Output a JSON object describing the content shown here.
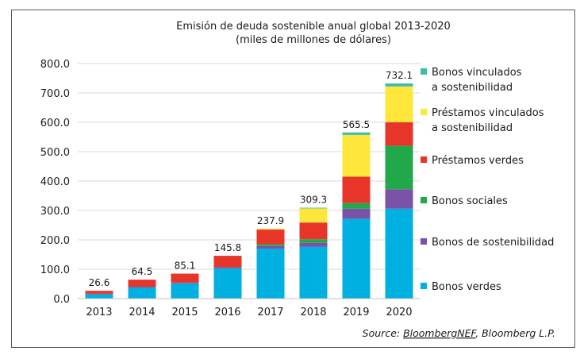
{
  "chart_data": {
    "type": "bar",
    "stacked": true,
    "title": "Emisión de deuda sostenible anual global 2013-2020",
    "subtitle": "(miles de millones de dólares)",
    "categories": [
      "2013",
      "2014",
      "2015",
      "2016",
      "2017",
      "2018",
      "2019",
      "2020"
    ],
    "y_ticks": [
      "0.0",
      "100.0",
      "200.0",
      "300.0",
      "400.0",
      "500.0",
      "600.0",
      "700.0",
      "800.0"
    ],
    "ylim": [
      0,
      800
    ],
    "grid": true,
    "legend_position": "right",
    "totals": [
      "26.6",
      "64.5",
      "85.1",
      "145.8",
      "237.9",
      "309.3",
      "565.5",
      "732.1"
    ],
    "series": [
      {
        "name": "Bonos verdes",
        "color": "#00b0e0",
        "values": [
          15,
          38,
          52,
          103,
          170,
          176,
          272,
          306
        ]
      },
      {
        "name": "Bonos de sostenibilidad",
        "color": "#7a52a8",
        "values": [
          1.6,
          2.5,
          3,
          4,
          9,
          14,
          34,
          66
        ]
      },
      {
        "name": "Bonos sociales",
        "color": "#20a84a",
        "values": [
          0,
          0,
          0,
          0,
          6,
          12,
          19,
          148
        ]
      },
      {
        "name": "Préstamos verdes",
        "color": "#e8352a",
        "values": [
          10,
          24,
          30,
          38.8,
          50,
          57,
          90,
          80
        ]
      },
      {
        "name": "Préstamos vinculados\na sostenibilidad",
        "color": "#ffe63a",
        "values": [
          0,
          0,
          0,
          0,
          2.9,
          48,
          142,
          122
        ]
      },
      {
        "name": "Bonos vinculados\na sostenibilidad",
        "color": "#3cbcaa",
        "values": [
          0,
          0,
          0,
          0,
          0,
          2.3,
          8.5,
          10.1
        ]
      }
    ]
  },
  "source": {
    "prefix": "Source: ",
    "name": "BloombergNEF",
    "suffix": ", Bloomberg L.P."
  }
}
